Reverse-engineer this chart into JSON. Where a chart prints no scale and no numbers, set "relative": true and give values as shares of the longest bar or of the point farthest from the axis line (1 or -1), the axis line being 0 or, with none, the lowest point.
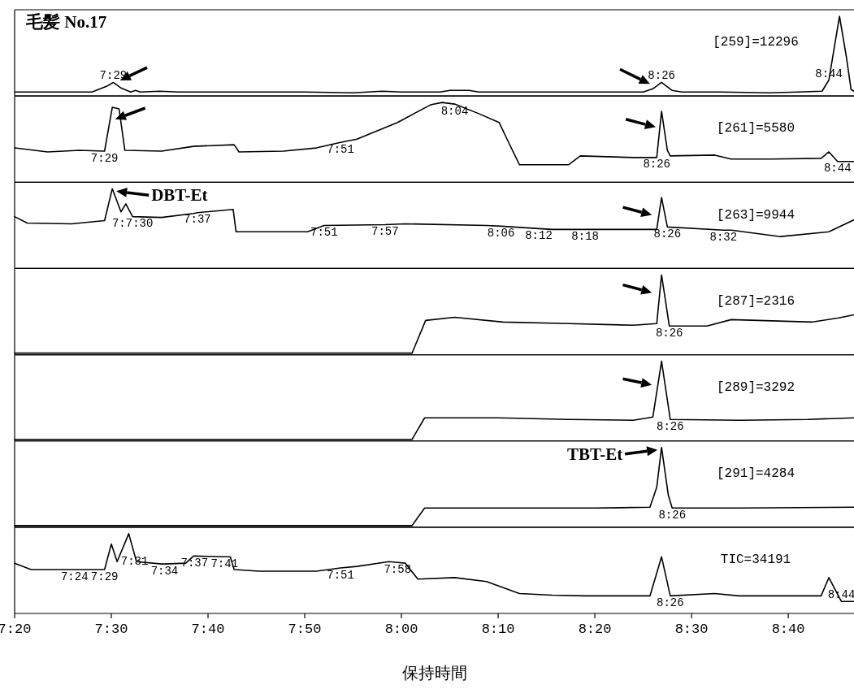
{
  "chart_data": [
    {
      "type": "line",
      "title": "毛髪 No.17",
      "relative": true,
      "xlim": [
        440,
        526.8
      ],
      "tick_labels": false,
      "series": [
        {
          "color": "#000000",
          "x": [
            440,
            448,
            449.5,
            450.2,
            451,
            452,
            452.5,
            453,
            455,
            457,
            470,
            475,
            478,
            480,
            484,
            485,
            487,
            488,
            505,
            506,
            506.9,
            508,
            509,
            513,
            518,
            521,
            523.5,
            524.2,
            525.3,
            526,
            526.5,
            526.8
          ],
          "values": [
            0.05,
            0.05,
            0.12,
            0.17,
            0.1,
            0.05,
            0.07,
            0.05,
            0.06,
            0.05,
            0.05,
            0.04,
            0.06,
            0.05,
            0.05,
            0.07,
            0.07,
            0.05,
            0.05,
            0.09,
            0.17,
            0.07,
            0.05,
            0.05,
            0.04,
            0.05,
            0.06,
            0.2,
            1,
            0.5,
            0.08,
            0.06
          ]
        }
      ],
      "annotations": [
        {
          "text": "7:29",
          "x": 450.2,
          "y": 0.17
        },
        {
          "text": "8:26",
          "x": 506.9,
          "y": 0.17
        },
        {
          "text": "8:44",
          "x": 524.2,
          "y": 0.2
        },
        "[259]=12296"
      ]
    },
    {
      "type": "line",
      "relative": true,
      "xlim": [
        440,
        526.8
      ],
      "tick_labels": false,
      "series": [
        {
          "color": "#000000",
          "x": [
            440,
            443.4,
            446.7,
            449.3,
            450.1,
            450.8,
            451.4,
            455.2,
            458.5,
            462.7,
            463.2,
            467.8,
            471.2,
            473.7,
            475.4,
            479.6,
            483,
            484.2,
            485.5,
            488,
            490.1,
            491,
            492.2,
            497.3,
            498.5,
            504,
            506.4,
            506.9,
            507.5,
            507.8,
            512.4,
            514.1,
            518.3,
            523.4,
            524.2,
            525.1,
            526.8
          ],
          "values": [
            0.43,
            0.38,
            0.4,
            0.39,
            0.94,
            0.92,
            0.4,
            0.39,
            0.45,
            0.47,
            0.38,
            0.39,
            0.43,
            0.5,
            0.54,
            0.75,
            0.97,
            1,
            0.98,
            0.86,
            0.75,
            0.52,
            0.22,
            0.22,
            0.33,
            0.31,
            0.31,
            0.89,
            0.4,
            0.33,
            0.34,
            0.29,
            0.29,
            0.3,
            0.38,
            0.26,
            0.26
          ]
        }
      ],
      "annotations": [
        {
          "text": "7:29",
          "x": 449.3,
          "y": 0.39
        },
        {
          "text": "7:51",
          "x": 473.7,
          "y": 0.5
        },
        {
          "text": "8:04",
          "x": 485.5,
          "y": 0.98
        },
        {
          "text": "8:26",
          "x": 506.4,
          "y": 0.31
        },
        {
          "text": "8:44",
          "x": 525.1,
          "y": 0.26
        },
        "[261]=5580"
      ]
    },
    {
      "type": "line",
      "relative": true,
      "xlim": [
        440,
        526.8
      ],
      "tick_labels": false,
      "series": [
        {
          "name": "DBT-Et",
          "color": "#000000",
          "x": [
            440,
            441.3,
            445.9,
            449.3,
            450.1,
            451,
            451.5,
            452.2,
            455.2,
            458.5,
            458.9,
            462.6,
            462.9,
            470.3,
            472,
            478.3,
            480.4,
            488.8,
            490.3,
            494.2,
            495.6,
            499,
            506.4,
            506.9,
            507.5,
            513.3,
            514.1,
            519.2,
            524.2,
            526.8
          ],
          "values": [
            0.65,
            0.57,
            0.56,
            0.6,
            1,
            0.71,
            0.81,
            0.65,
            0.64,
            0.69,
            0.7,
            0.74,
            0.46,
            0.46,
            0.54,
            0.55,
            0.56,
            0.54,
            0.53,
            0.5,
            0.49,
            0.49,
            0.49,
            0.89,
            0.52,
            0.48,
            0.48,
            0.4,
            0.46,
            0.61
          ]
        }
      ],
      "annotations": [
        {
          "text": "7:7:30",
          "x": 452.2,
          "y": 0.65
        },
        {
          "text": "7:37",
          "x": 458.9,
          "y": 0.7
        },
        {
          "text": "7:51",
          "x": 472,
          "y": 0.54
        },
        {
          "text": "7:57",
          "x": 478.3,
          "y": 0.55
        },
        {
          "text": "8:06",
          "x": 490.3,
          "y": 0.53
        },
        {
          "text": "8:12",
          "x": 494.2,
          "y": 0.5
        },
        {
          "text": "8:18",
          "x": 499,
          "y": 0.49
        },
        {
          "text": "8:26",
          "x": 507.5,
          "y": 0.52
        },
        {
          "text": "8:32",
          "x": 513.3,
          "y": 0.48
        },
        "[263]=9944"
      ]
    },
    {
      "type": "line",
      "relative": true,
      "xlim": [
        440,
        526.8
      ],
      "tick_labels": false,
      "series": [
        {
          "color": "#000000",
          "x": [
            440,
            481.1,
            482.5,
            485.5,
            490.5,
            497.3,
            504,
            506.4,
            506.9,
            507.7,
            511.6,
            514.1,
            522.5,
            525.1,
            526.8
          ],
          "values": [
            0.02,
            0.02,
            0.43,
            0.47,
            0.41,
            0.39,
            0.37,
            0.39,
            1,
            0.36,
            0.36,
            0.44,
            0.41,
            0.46,
            0.5
          ]
        }
      ],
      "annotations": [
        {
          "text": "8:26",
          "x": 507.7,
          "y": 0.36
        },
        "[287]=2316"
      ]
    },
    {
      "type": "line",
      "relative": true,
      "xlim": [
        440,
        526.8
      ],
      "tick_labels": false,
      "series": [
        {
          "color": "#000000",
          "x": [
            440,
            481.1,
            482.4,
            490,
            497.3,
            504,
            506,
            506.9,
            507.8,
            515,
            522,
            526.8
          ],
          "values": [
            0.02,
            0.02,
            0.29,
            0.29,
            0.27,
            0.26,
            0.3,
            1,
            0.27,
            0.26,
            0.27,
            0.29
          ]
        }
      ],
      "annotations": [
        {
          "text": "8:26",
          "x": 507.8,
          "y": 0.27
        },
        "[289]=3292"
      ]
    },
    {
      "type": "line",
      "relative": true,
      "xlim": [
        440,
        526.8
      ],
      "tick_labels": false,
      "series": [
        {
          "name": "TBT-Et",
          "color": "#000000",
          "x": [
            440,
            481.1,
            482.4,
            490,
            500,
            505.7,
            506.4,
            506.9,
            507.6,
            508,
            515,
            526.8
          ],
          "values": [
            0.02,
            0.02,
            0.24,
            0.24,
            0.24,
            0.25,
            0.5,
            1,
            0.4,
            0.24,
            0.24,
            0.25
          ]
        }
      ],
      "annotations": [
        {
          "text": "8:26",
          "x": 508,
          "y": 0.24
        },
        "[291]=4284"
      ]
    },
    {
      "type": "line",
      "relative": true,
      "xlim": [
        440,
        526.8
      ],
      "tick_labels": "x",
      "xlabel": "保持時間",
      "xticks": [
        {
          "value": 440,
          "label": "7:20"
        },
        {
          "value": 450,
          "label": "7:30"
        },
        {
          "value": 460,
          "label": "7:40"
        },
        {
          "value": 470,
          "label": "7:50"
        },
        {
          "value": 480,
          "label": "8:00"
        },
        {
          "value": 490,
          "label": "8:10"
        },
        {
          "value": 500,
          "label": "8:20"
        },
        {
          "value": 510,
          "label": "8:30"
        },
        {
          "value": 520,
          "label": "8:40"
        }
      ],
      "series": [
        {
          "color": "#000000",
          "x": [
            440,
            441.7,
            446.2,
            449.3,
            450,
            450.6,
            451.8,
            452.4,
            452.6,
            455.2,
            455.5,
            457.7,
            458.5,
            458.6,
            461.7,
            462.3,
            462.7,
            465.3,
            471.2,
            473.7,
            475.4,
            478.7,
            479.6,
            480.4,
            481.7,
            485.5,
            488.8,
            492.2,
            495.6,
            499,
            505.7,
            506.9,
            507.8,
            512.4,
            514.9,
            523.4,
            524.2,
            525.5,
            526.8
          ],
          "values": [
            0.63,
            0.55,
            0.55,
            0.55,
            0.87,
            0.65,
            1,
            0.74,
            0.65,
            0.62,
            0.62,
            0.63,
            0.72,
            0.72,
            0.71,
            0.71,
            0.55,
            0.53,
            0.53,
            0.57,
            0.59,
            0.65,
            0.64,
            0.63,
            0.43,
            0.45,
            0.4,
            0.25,
            0.23,
            0.22,
            0.22,
            0.71,
            0.22,
            0.25,
            0.22,
            0.22,
            0.45,
            0.15,
            0.15
          ]
        }
      ],
      "annotations": [
        {
          "text": "7:24",
          "x": 446.2,
          "y": 0.55
        },
        {
          "text": "7:29",
          "x": 449.3,
          "y": 0.55
        },
        {
          "text": "7:31",
          "x": 452.4,
          "y": 0.74
        },
        {
          "text": "7:34",
          "x": 455.5,
          "y": 0.62
        },
        {
          "text": "7:37",
          "x": 458.6,
          "y": 0.72
        },
        {
          "text": "7:41",
          "x": 461.7,
          "y": 0.71
        },
        {
          "text": "7:51",
          "x": 473.7,
          "y": 0.57
        },
        {
          "text": "7:58",
          "x": 479.6,
          "y": 0.64
        },
        {
          "text": "8:26",
          "x": 507.8,
          "y": 0.22
        },
        {
          "text": "8:44",
          "x": 525.5,
          "y": 0.15
        },
        "TIC=34191"
      ]
    }
  ]
}
